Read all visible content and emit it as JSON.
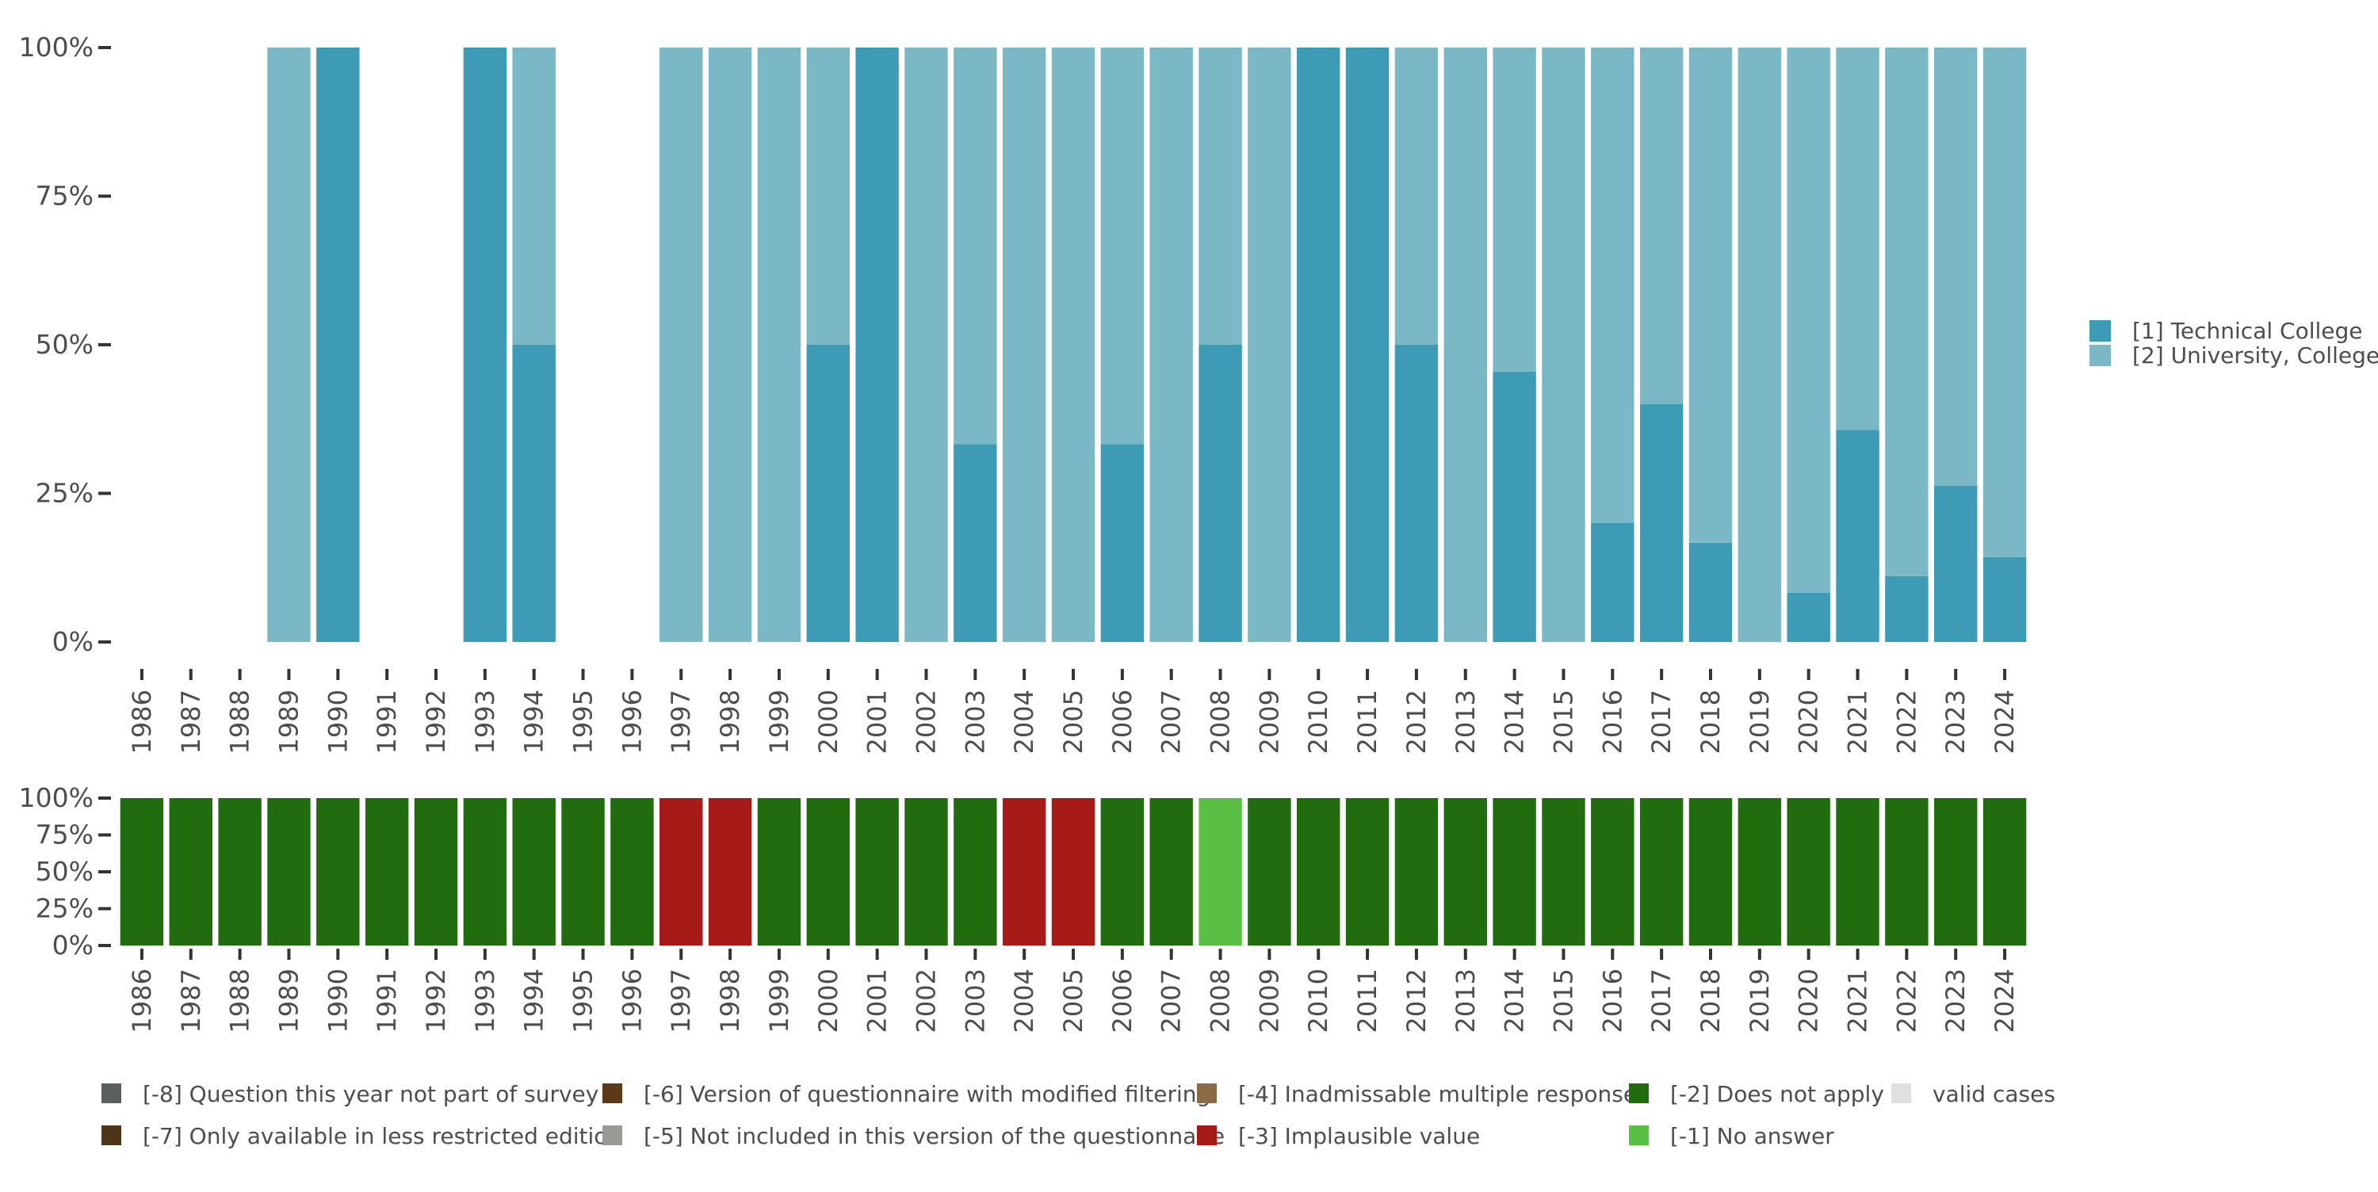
{
  "chart_data": [
    {
      "type": "bar",
      "stacked": true,
      "title": "",
      "xlabel": "",
      "ylabel": "",
      "ylim": [
        0,
        1
      ],
      "y_ticks": [
        "0%",
        "25%",
        "50%",
        "75%",
        "100%"
      ],
      "categories": [
        "1986",
        "1987",
        "1988",
        "1989",
        "1990",
        "1991",
        "1992",
        "1993",
        "1994",
        "1995",
        "1996",
        "1997",
        "1998",
        "1999",
        "2000",
        "2001",
        "2002",
        "2003",
        "2004",
        "2005",
        "2006",
        "2007",
        "2008",
        "2009",
        "2010",
        "2011",
        "2012",
        "2013",
        "2014",
        "2015",
        "2016",
        "2017",
        "2018",
        "2019",
        "2020",
        "2021",
        "2022",
        "2023",
        "2024"
      ],
      "legend_position": "right",
      "series": [
        {
          "name": "[1] Technical College",
          "color": "#3d9bb5",
          "values": [
            null,
            null,
            null,
            0,
            1,
            null,
            null,
            1,
            0.5,
            null,
            null,
            0,
            0,
            0,
            0.5,
            1,
            0,
            0.333,
            0,
            0,
            0.333,
            0,
            0.5,
            0,
            1,
            1,
            0.5,
            0,
            0.455,
            0,
            0.2,
            0.4,
            0.167,
            0,
            0.083,
            0.357,
            0.111,
            0.263,
            0.143
          ]
        },
        {
          "name": "[2] University, College",
          "color": "#7ab8c6",
          "values": [
            null,
            null,
            null,
            1,
            0,
            null,
            null,
            0,
            0.5,
            null,
            null,
            1,
            1,
            1,
            0.5,
            0,
            1,
            0.667,
            1,
            1,
            0.667,
            1,
            0.5,
            1,
            0,
            0,
            0.5,
            1,
            0.545,
            1,
            0.8,
            0.6,
            0.833,
            1,
            0.917,
            0.643,
            0.889,
            0.737,
            0.857
          ]
        }
      ]
    },
    {
      "type": "bar",
      "stacked": true,
      "title": "",
      "xlabel": "",
      "ylabel": "",
      "ylim": [
        0,
        1
      ],
      "y_ticks": [
        "0%",
        "25%",
        "50%",
        "75%",
        "100%"
      ],
      "categories": [
        "1986",
        "1987",
        "1988",
        "1989",
        "1990",
        "1991",
        "1992",
        "1993",
        "1994",
        "1995",
        "1996",
        "1997",
        "1998",
        "1999",
        "2000",
        "2001",
        "2002",
        "2003",
        "2004",
        "2005",
        "2006",
        "2007",
        "2008",
        "2009",
        "2010",
        "2011",
        "2012",
        "2013",
        "2014",
        "2015",
        "2016",
        "2017",
        "2018",
        "2019",
        "2020",
        "2021",
        "2022",
        "2023",
        "2024"
      ],
      "legend_position": "bottom",
      "bar_category": [
        "-2",
        "-2",
        "-2",
        "-2",
        "-2",
        "-2",
        "-2",
        "-2",
        "-2",
        "-2",
        "-2",
        "-3",
        "-3",
        "-2",
        "-2",
        "-2",
        "-2",
        "-2",
        "-3",
        "-3",
        "-2",
        "-2",
        "-1",
        "-2",
        "-2",
        "-2",
        "-2",
        "-2",
        "-2",
        "-2",
        "-2",
        "-2",
        "-2",
        "-2",
        "-2",
        "-2",
        "-2",
        "-2",
        "-2"
      ],
      "legend": [
        {
          "code": "-8",
          "label": "[-8] Question this year not part of survey",
          "color": "#5a605d"
        },
        {
          "code": "-7",
          "label": "[-7] Only available in less restricted edition",
          "color": "#4e3418"
        },
        {
          "code": "-6",
          "label": "[-6] Version of questionnaire with modified filtering",
          "color": "#5c3a17"
        },
        {
          "code": "-5",
          "label": "[-5] Not included in this version of the questionnaire",
          "color": "#999a96"
        },
        {
          "code": "-4",
          "label": "[-4] Inadmissable multiple response",
          "color": "#8b6a45"
        },
        {
          "code": "-3",
          "label": "[-3] Implausible value",
          "color": "#a61b18"
        },
        {
          "code": "-2",
          "label": "[-2] Does not apply",
          "color": "#226c10"
        },
        {
          "code": "-1",
          "label": "[-1] No answer",
          "color": "#5abf45"
        },
        {
          "code": "valid",
          "label": "valid cases",
          "color": "#dfe1de"
        }
      ]
    }
  ]
}
